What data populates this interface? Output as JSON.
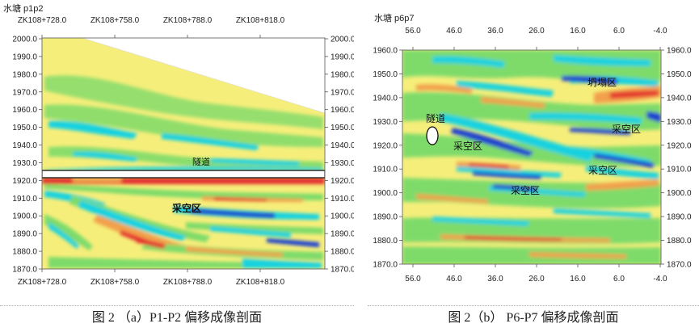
{
  "figure_a": {
    "title": "水塘 p1p2",
    "top_ticks": [
      "ZK108+728.0",
      "ZK108+758.0",
      "ZK108+788.0",
      "ZK108+818.0"
    ],
    "bottom_ticks": [
      "ZK108+728.0",
      "ZK108+758.0",
      "ZK108+788.0",
      "ZK108+818.0"
    ],
    "y_ticks": [
      "2000.0",
      "1990.0",
      "1980.0",
      "1970.0",
      "1960.0",
      "1950.0",
      "1940.0",
      "1930.0",
      "1920.0",
      "1910.0",
      "1900.0",
      "1890.0",
      "1880.0",
      "1870.0"
    ],
    "labels": {
      "tunnel": "隧道",
      "goaf": "采空区"
    },
    "caption": "图 2  （a）P1-P2 偏移成像剖面"
  },
  "figure_b": {
    "title": "水塘 p6p7",
    "x_ticks": [
      "56.0",
      "46.0",
      "36.0",
      "26.0",
      "16.0",
      "6.0",
      "-4.0"
    ],
    "y_ticks": [
      "1960.0",
      "1950.0",
      "1940.0",
      "1930.0",
      "1920.0",
      "1910.0",
      "1900.0",
      "1890.0",
      "1880.0",
      "1870.0"
    ],
    "labels": {
      "collapse": "坍塌区",
      "tunnel": "隧道",
      "goaf1": "采空区",
      "goaf2": "采空区",
      "goaf3": "采空区",
      "goaf4": "采空区"
    },
    "caption": "图 2（b） P6-P7 偏移成像剖面"
  },
  "colors": {
    "background": "#f6ee7a",
    "green": "#7edb6a",
    "cyan": "#19d2e0",
    "blue": "#1a3fd0",
    "orange": "#f2a04c",
    "red": "#e4322d"
  }
}
